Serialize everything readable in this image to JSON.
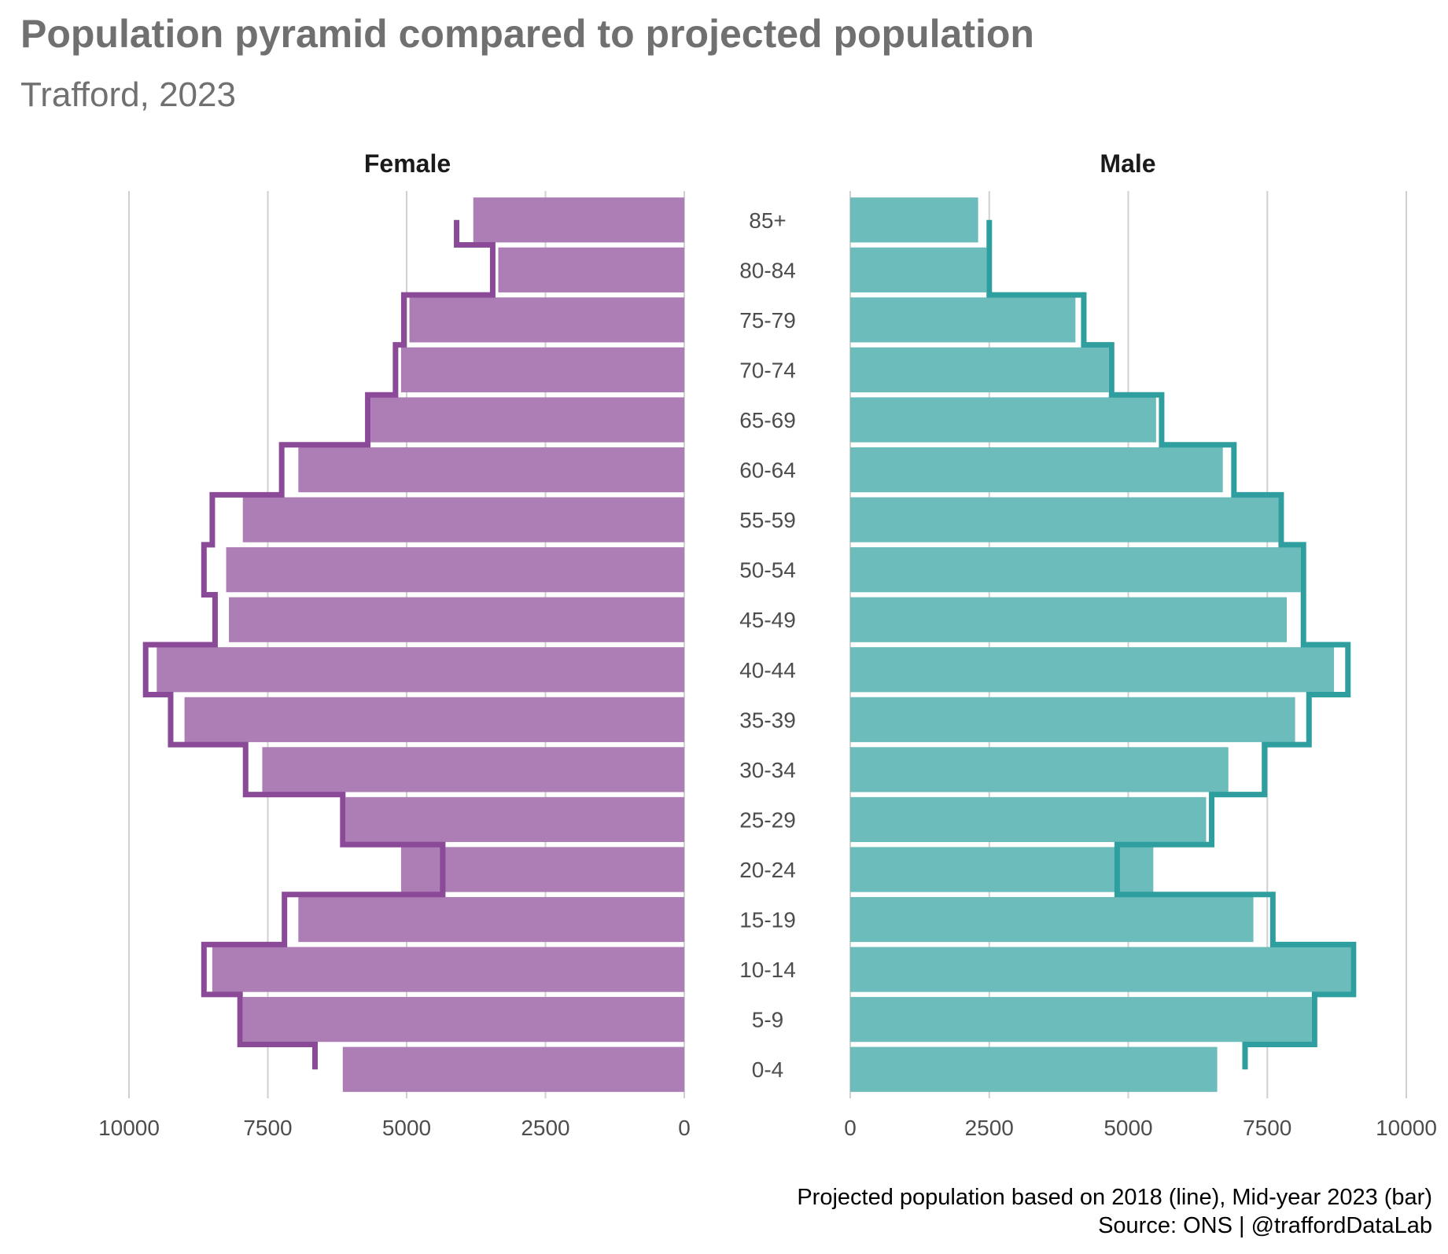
{
  "title": "Population pyramid compared to projected population",
  "subtitle": "Trafford, 2023",
  "caption_line1": "Projected population based on 2018 (line), Mid-year 2023 (bar)",
  "caption_line2": "Source: ONS | @traffordDataLab",
  "colors": {
    "female_bar": "#ad7eb5",
    "female_line": "#8b4a98",
    "male_bar": "#6cbcbc",
    "male_line": "#2f9e9e",
    "gridline": "#d0d0d0"
  },
  "chart_data": {
    "type": "bar",
    "orientation": "horizontal",
    "facets": [
      "Female",
      "Male"
    ],
    "categories": [
      "0-4",
      "5-9",
      "10-14",
      "15-19",
      "20-24",
      "25-29",
      "30-34",
      "35-39",
      "40-44",
      "45-49",
      "50-54",
      "55-59",
      "60-64",
      "65-69",
      "70-74",
      "75-79",
      "80-84",
      "85+"
    ],
    "x_ticks": [
      "0",
      "2500",
      "5000",
      "7500",
      "10000"
    ],
    "xlim": [
      0,
      10000
    ],
    "grid": true,
    "series": [
      {
        "name": "Mid-year 2023 (bar)",
        "sex": "Female",
        "mark": "bar",
        "values": [
          6150,
          7950,
          8500,
          6950,
          5100,
          6100,
          7600,
          9000,
          9500,
          8200,
          8250,
          7950,
          6950,
          5650,
          5100,
          4950,
          3350,
          3800
        ]
      },
      {
        "name": "Projected population based on 2018 (line)",
        "sex": "Female",
        "mark": "step-line",
        "values": [
          6650,
          8000,
          8650,
          7200,
          4350,
          6150,
          7900,
          9250,
          9700,
          8450,
          8650,
          8500,
          7250,
          5700,
          5200,
          5050,
          3450,
          4100
        ]
      },
      {
        "name": "Mid-year 2023 (bar)",
        "sex": "Male",
        "mark": "bar",
        "values": [
          6600,
          8300,
          9000,
          7250,
          5450,
          6400,
          6800,
          8000,
          8700,
          7850,
          8100,
          7700,
          6700,
          5500,
          4650,
          4050,
          2450,
          2300
        ]
      },
      {
        "name": "Projected population based on 2018 (line)",
        "sex": "Male",
        "mark": "step-line",
        "values": [
          7100,
          8350,
          9050,
          7600,
          4800,
          6500,
          7450,
          8250,
          8950,
          8150,
          8150,
          7750,
          6900,
          5600,
          4700,
          4200,
          2500,
          2500
        ]
      }
    ]
  }
}
